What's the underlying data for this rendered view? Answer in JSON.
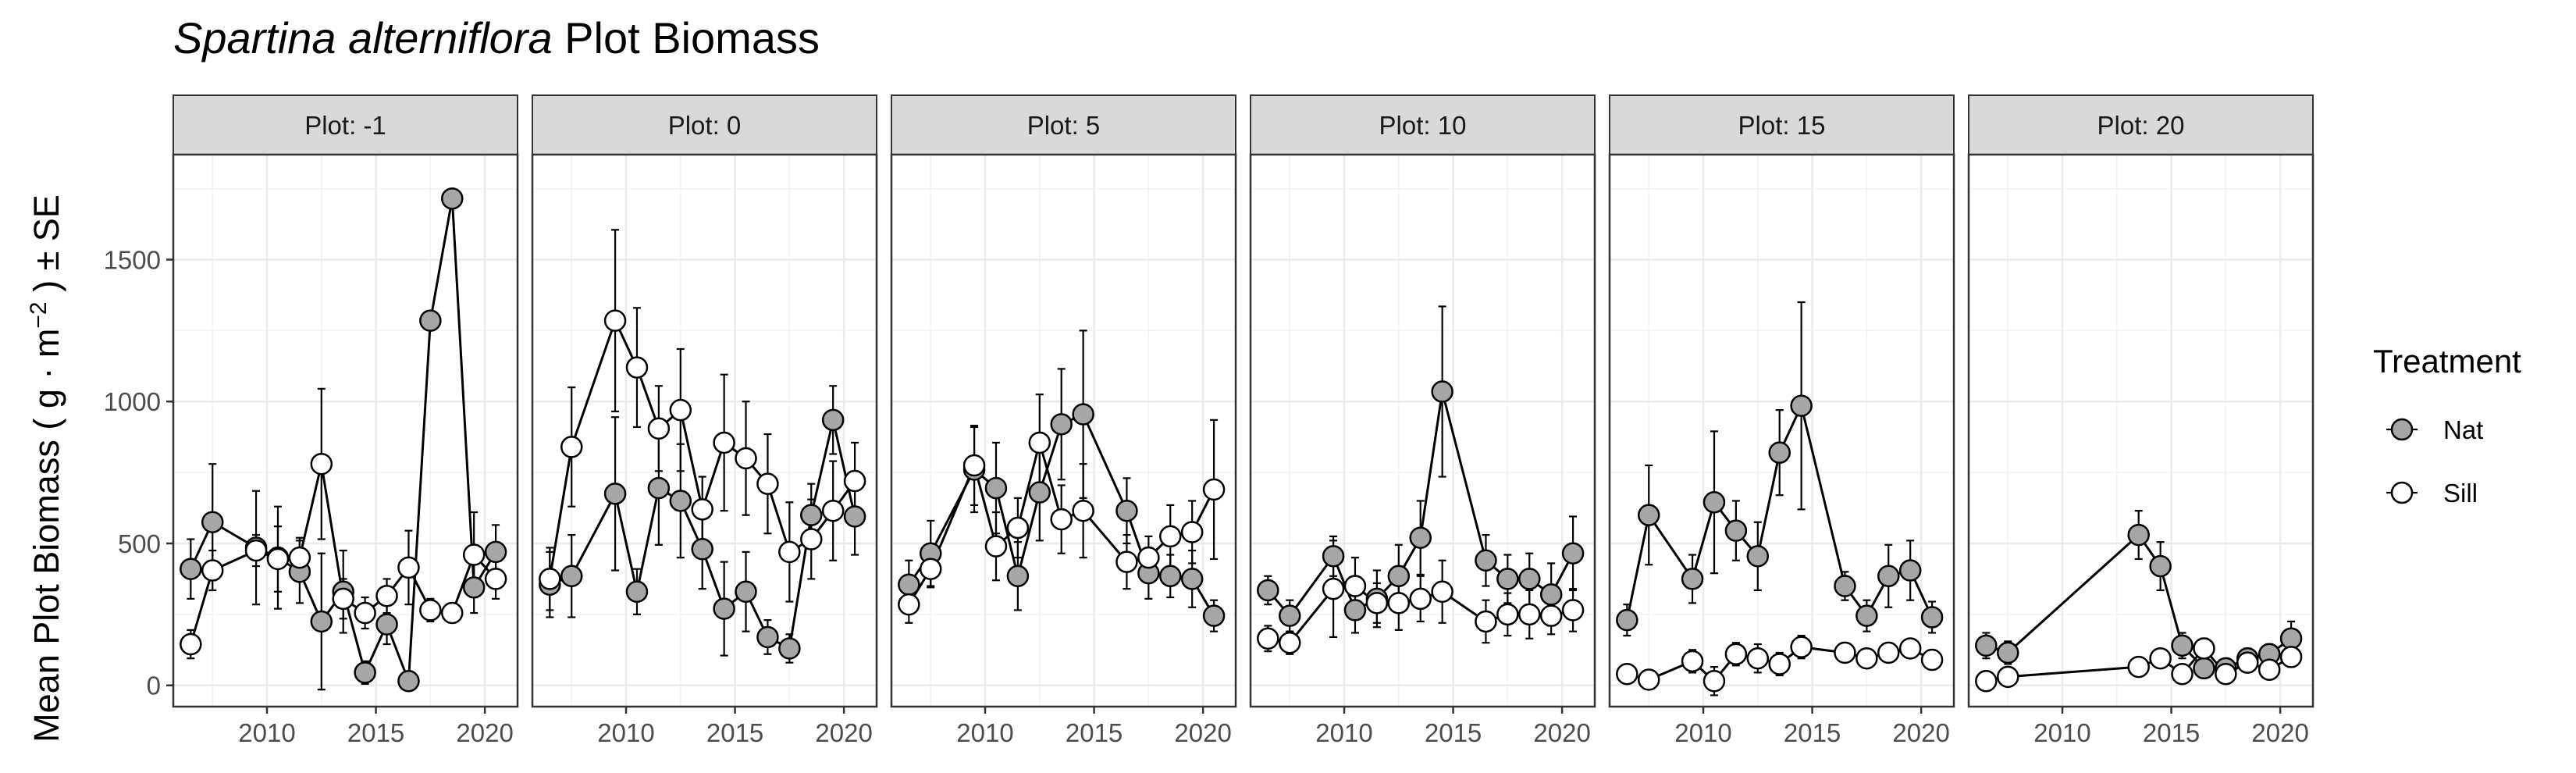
{
  "chart_data": {
    "type": "line",
    "title_italic": "Spartina alterniflora",
    "title_rest": "Plot Biomass",
    "ylabel_main": "Mean Plot Biomass ( g",
    "ylabel_dot": "·",
    "ylabel_m": "m",
    "ylabel_sup": "−2",
    "ylabel_tail": ") ± SE",
    "ylim": [
      -75,
      1870
    ],
    "yticks": [
      0,
      500,
      1000,
      1500
    ],
    "xlim": [
      2005.7,
      2021.5
    ],
    "xticks": [
      2010,
      2015,
      2020
    ],
    "grid": true,
    "legend": {
      "title": "Treatment",
      "position": "right",
      "entries": [
        {
          "label": "Nat",
          "color": "#a6a6a6"
        },
        {
          "label": "Sill",
          "color": "#ffffff"
        }
      ]
    },
    "panels": [
      {
        "label": "Plot: -1",
        "series": [
          {
            "name": "Nat",
            "points": [
              [
                2006.5,
                410,
                105
              ],
              [
                2007.5,
                575,
                205
              ],
              [
                2009.5,
                485,
                200
              ],
              [
                2010.5,
                450,
                180
              ],
              [
                2011.5,
                400,
                110
              ],
              [
                2012.5,
                225,
                240
              ],
              [
                2013.5,
                330,
                145
              ],
              [
                2014.5,
                45,
                40
              ],
              [
                2015.5,
                215,
                70
              ],
              [
                2016.5,
                15,
                20
              ],
              [
                2017.5,
                1285,
                0
              ],
              [
                2018.5,
                1715,
                0
              ],
              [
                2019.5,
                345,
                90
              ],
              [
                2020.5,
                470,
                95
              ]
            ]
          },
          {
            "name": "Sill",
            "points": [
              [
                2006.5,
                145,
                50
              ],
              [
                2007.5,
                405,
                70
              ],
              [
                2009.5,
                475,
                55
              ],
              [
                2010.5,
                445,
                115
              ],
              [
                2011.5,
                450,
                70
              ],
              [
                2012.5,
                780,
                265
              ],
              [
                2013.5,
                305,
                70
              ],
              [
                2014.5,
                255,
                55
              ],
              [
                2015.5,
                315,
                60
              ],
              [
                2016.5,
                415,
                130
              ],
              [
                2017.5,
                265,
                40
              ],
              [
                2018.5,
                255,
                30
              ],
              [
                2019.5,
                460,
                150
              ],
              [
                2020.5,
                375,
                70
              ]
            ]
          }
        ]
      },
      {
        "label": "Plot: 0",
        "series": [
          {
            "name": "Nat",
            "points": [
              [
                2006.5,
                355,
                115
              ],
              [
                2007.5,
                385,
                145
              ],
              [
                2009.5,
                675,
                270
              ],
              [
                2010.5,
                330,
                80
              ],
              [
                2011.5,
                695,
                200
              ],
              [
                2012.5,
                650,
                200
              ],
              [
                2013.5,
                480,
                140
              ],
              [
                2014.5,
                270,
                165
              ],
              [
                2015.5,
                330,
                140
              ],
              [
                2016.5,
                170,
                60
              ],
              [
                2017.5,
                130,
                50
              ],
              [
                2018.5,
                600,
                110
              ],
              [
                2019.5,
                935,
                120
              ],
              [
                2020.5,
                595,
                135
              ]
            ]
          },
          {
            "name": "Sill",
            "points": [
              [
                2006.5,
                375,
                110
              ],
              [
                2007.5,
                840,
                210
              ],
              [
                2009.5,
                1285,
                320
              ],
              [
                2010.5,
                1120,
                210
              ],
              [
                2011.5,
                905,
                150
              ],
              [
                2012.5,
                970,
                215
              ],
              [
                2013.5,
                620,
                115
              ],
              [
                2014.5,
                855,
                240
              ],
              [
                2015.5,
                800,
                200
              ],
              [
                2016.5,
                710,
                175
              ],
              [
                2017.5,
                470,
                175
              ],
              [
                2018.5,
                515,
                140
              ],
              [
                2019.5,
                615,
                175
              ],
              [
                2020.5,
                720,
                135
              ]
            ]
          }
        ]
      },
      {
        "label": "Plot: 5",
        "series": [
          {
            "name": "Nat",
            "points": [
              [
                2006.5,
                355,
                85
              ],
              [
                2007.5,
                465,
                115
              ],
              [
                2009.5,
                760,
                150
              ],
              [
                2010.5,
                695,
                160
              ],
              [
                2011.5,
                385,
                120
              ],
              [
                2012.5,
                680,
                170
              ],
              [
                2013.5,
                920,
                195
              ],
              [
                2014.5,
                955,
                295
              ],
              [
                2016.5,
                615,
                115
              ],
              [
                2017.5,
                395,
                90
              ],
              [
                2018.5,
                385,
                75
              ],
              [
                2019.5,
                375,
                100
              ],
              [
                2020.5,
                245,
                55
              ]
            ]
          },
          {
            "name": "Sill",
            "points": [
              [
                2006.5,
                285,
                65
              ],
              [
                2007.5,
                410,
                65
              ],
              [
                2009.5,
                775,
                140
              ],
              [
                2010.5,
                490,
                120
              ],
              [
                2011.5,
                555,
                105
              ],
              [
                2012.5,
                855,
                170
              ],
              [
                2013.5,
                585,
                120
              ],
              [
                2014.5,
                615,
                165
              ],
              [
                2016.5,
                435,
                95
              ],
              [
                2017.5,
                450,
                75
              ],
              [
                2018.5,
                525,
                110
              ],
              [
                2019.5,
                540,
                110
              ],
              [
                2020.5,
                690,
                245
              ]
            ]
          }
        ]
      },
      {
        "label": "Plot: 10",
        "series": [
          {
            "name": "Nat",
            "points": [
              [
                2006.5,
                335,
                50
              ],
              [
                2007.5,
                245,
                55
              ],
              [
                2009.5,
                455,
                70
              ],
              [
                2010.5,
                265,
                80
              ],
              [
                2011.5,
                305,
                100
              ],
              [
                2012.5,
                385,
                110
              ],
              [
                2013.5,
                520,
                130
              ],
              [
                2014.5,
                1035,
                300
              ],
              [
                2016.5,
                440,
                90
              ],
              [
                2017.5,
                375,
                85
              ],
              [
                2018.5,
                375,
                90
              ],
              [
                2019.5,
                320,
                110
              ],
              [
                2020.5,
                465,
                130
              ]
            ]
          },
          {
            "name": "Sill",
            "points": [
              [
                2006.5,
                165,
                45
              ],
              [
                2007.5,
                150,
                40
              ],
              [
                2009.5,
                340,
                170
              ],
              [
                2010.5,
                350,
                100
              ],
              [
                2011.5,
                290,
                70
              ],
              [
                2012.5,
                290,
                95
              ],
              [
                2013.5,
                305,
                80
              ],
              [
                2014.5,
                330,
                110
              ],
              [
                2016.5,
                225,
                75
              ],
              [
                2017.5,
                250,
                75
              ],
              [
                2018.5,
                250,
                85
              ],
              [
                2019.5,
                245,
                65
              ],
              [
                2020.5,
                265,
                75
              ]
            ]
          }
        ]
      },
      {
        "label": "Plot: 15",
        "series": [
          {
            "name": "Nat",
            "points": [
              [
                2006.5,
                230,
                55
              ],
              [
                2007.5,
                600,
                175
              ],
              [
                2009.5,
                375,
                85
              ],
              [
                2010.5,
                645,
                250
              ],
              [
                2011.5,
                545,
                105
              ],
              [
                2012.5,
                455,
                120
              ],
              [
                2013.5,
                820,
                150
              ],
              [
                2014.5,
                985,
                365
              ],
              [
                2016.5,
                350,
                50
              ],
              [
                2017.5,
                245,
                55
              ],
              [
                2018.5,
                385,
                110
              ],
              [
                2019.5,
                405,
                105
              ],
              [
                2020.5,
                240,
                55
              ]
            ]
          },
          {
            "name": "Sill",
            "points": [
              [
                2006.5,
                40,
                15
              ],
              [
                2007.5,
                20,
                15
              ],
              [
                2009.5,
                85,
                40
              ],
              [
                2010.5,
                15,
                50
              ],
              [
                2011.5,
                110,
                40
              ],
              [
                2012.5,
                95,
                50
              ],
              [
                2013.5,
                75,
                40
              ],
              [
                2014.5,
                135,
                40
              ],
              [
                2016.5,
                115,
                30
              ],
              [
                2017.5,
                95,
                25
              ],
              [
                2018.5,
                115,
                30
              ],
              [
                2019.5,
                130,
                30
              ],
              [
                2020.5,
                90,
                20
              ]
            ]
          }
        ]
      },
      {
        "label": "Plot: 20",
        "series": [
          {
            "name": "Nat",
            "points": [
              [
                2006.5,
                140,
                45
              ],
              [
                2007.5,
                115,
                40
              ],
              [
                2013.5,
                530,
                85
              ],
              [
                2014.5,
                420,
                85
              ],
              [
                2015.5,
                140,
                45
              ],
              [
                2016.5,
                60,
                20
              ],
              [
                2017.5,
                60,
                15
              ],
              [
                2018.5,
                95,
                35
              ],
              [
                2019.5,
                110,
                35
              ],
              [
                2020.5,
                165,
                60
              ]
            ]
          },
          {
            "name": "Sill",
            "points": [
              [
                2006.5,
                15,
                15
              ],
              [
                2007.5,
                30,
                15
              ],
              [
                2013.5,
                65,
                20
              ],
              [
                2014.5,
                95,
                30
              ],
              [
                2015.5,
                40,
                20
              ],
              [
                2016.5,
                130,
                35
              ],
              [
                2017.5,
                40,
                20
              ],
              [
                2018.5,
                80,
                25
              ],
              [
                2019.5,
                55,
                20
              ],
              [
                2020.5,
                100,
                35
              ]
            ]
          }
        ]
      }
    ]
  }
}
